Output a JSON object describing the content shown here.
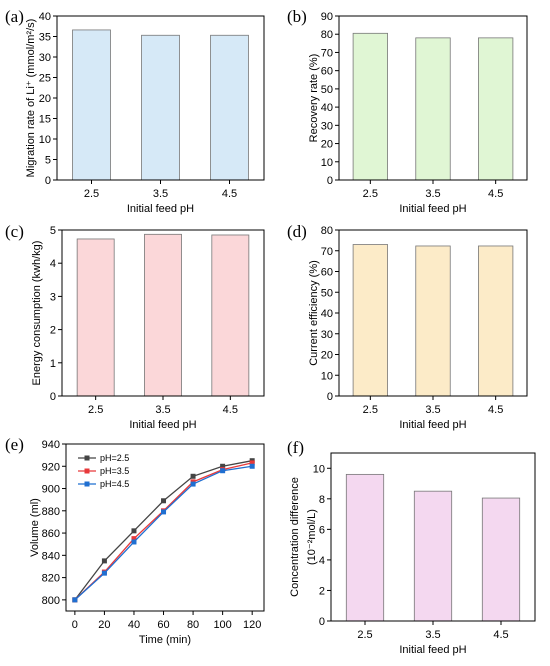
{
  "chart_data": [
    {
      "panel": "(a)",
      "type": "bar",
      "categories": [
        "2.5",
        "3.5",
        "4.5"
      ],
      "values": [
        36.6,
        35.3,
        35.3
      ],
      "ylim": [
        0,
        40
      ],
      "yticks": [
        0,
        5,
        10,
        15,
        20,
        25,
        30,
        35,
        40
      ],
      "xlabel": "Initial feed pH",
      "ylabel": "Migration rate of Li⁺ (mmol/m²/s)",
      "color": "#d6e9f7"
    },
    {
      "panel": "(b)",
      "type": "bar",
      "categories": [
        "2.5",
        "3.5",
        "4.5"
      ],
      "values": [
        80.5,
        78,
        78
      ],
      "ylim": [
        0,
        90
      ],
      "yticks": [
        0,
        10,
        20,
        30,
        40,
        50,
        60,
        70,
        80,
        90
      ],
      "xlabel": "Initial feed pH",
      "ylabel": "Recovery rate (%)",
      "color": "#e0f6d4"
    },
    {
      "panel": "(c)",
      "type": "bar",
      "categories": [
        "2.5",
        "3.5",
        "4.5"
      ],
      "values": [
        4.73,
        4.87,
        4.85
      ],
      "ylim": [
        0,
        5
      ],
      "yticks": [
        0,
        1,
        2,
        3,
        4,
        5
      ],
      "xlabel": "Initial feed pH",
      "ylabel": "Energy consumption (kwh/kg)",
      "color": "#fbd7d9"
    },
    {
      "panel": "(d)",
      "type": "bar",
      "categories": [
        "2.5",
        "3.5",
        "4.5"
      ],
      "values": [
        73,
        72.3,
        72.3
      ],
      "ylim": [
        0,
        80
      ],
      "yticks": [
        0,
        10,
        20,
        30,
        40,
        50,
        60,
        70,
        80
      ],
      "xlabel": "Initial feed pH",
      "ylabel": "Current efficiency (%)",
      "color": "#fcebc8"
    },
    {
      "panel": "(e)",
      "type": "line",
      "x": [
        0,
        20,
        40,
        60,
        80,
        100,
        120
      ],
      "series": [
        {
          "name": "pH=2.5",
          "color": "#444444",
          "values": [
            800,
            835,
            862,
            889,
            911,
            920,
            925
          ]
        },
        {
          "name": "pH=3.5",
          "color": "#e8393b",
          "values": [
            800,
            825,
            855,
            880,
            906,
            917,
            923
          ]
        },
        {
          "name": "pH=4.5",
          "color": "#1f6fd1",
          "values": [
            800,
            824,
            852,
            879,
            904,
            916,
            920
          ]
        }
      ],
      "xlim": [
        -6,
        128
      ],
      "ylim": [
        790,
        940
      ],
      "xticks": [
        0,
        20,
        40,
        60,
        80,
        100,
        120
      ],
      "yticks": [
        800,
        820,
        840,
        860,
        880,
        900,
        920,
        940
      ],
      "xlabel": "Time (min)",
      "ylabel": "Volume (ml)",
      "legend": "top-left"
    },
    {
      "panel": "(f)",
      "type": "bar",
      "categories": [
        "2.5",
        "3.5",
        "4.5"
      ],
      "values": [
        9.6,
        8.5,
        8.05
      ],
      "ylim": [
        0,
        11
      ],
      "yticks": [
        0,
        2,
        4,
        6,
        8,
        10
      ],
      "xlabel": "Initial feed pH",
      "ylabel": "Concentration difference",
      "ylabel2": "(10⁻²mol/L)",
      "color": "#f4d8f0"
    }
  ]
}
